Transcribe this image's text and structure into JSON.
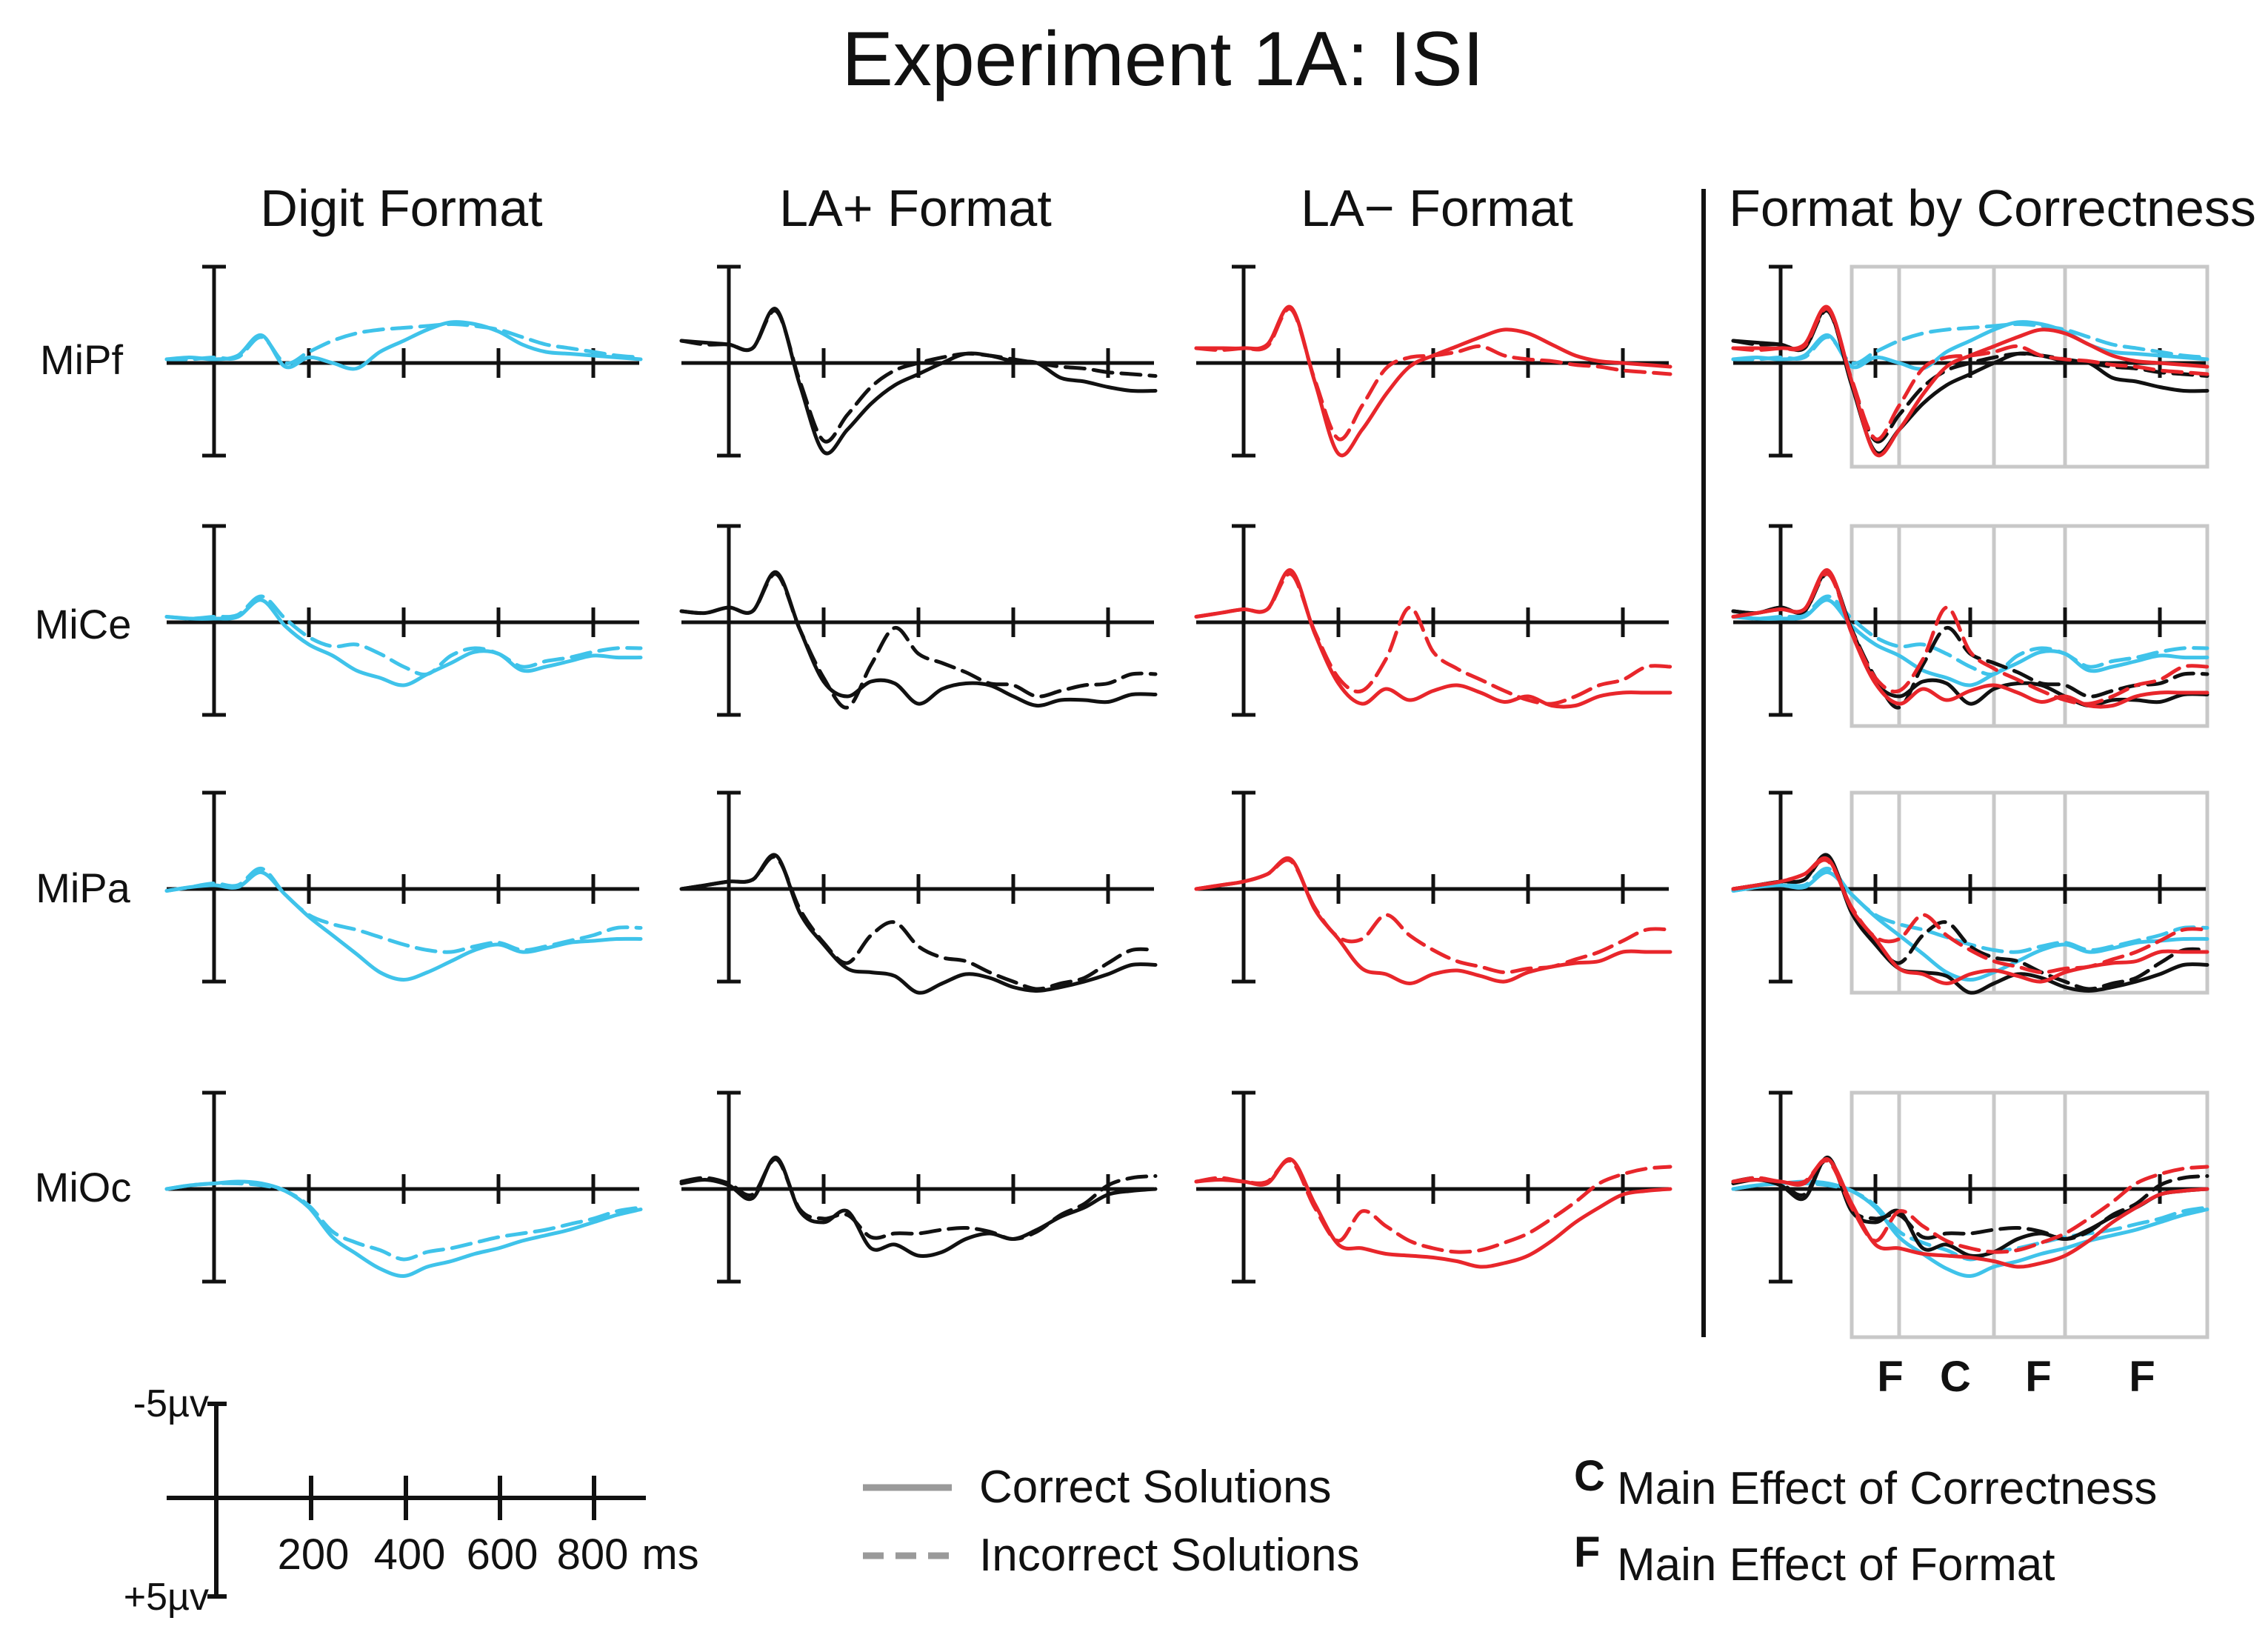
{
  "chart_data": {
    "type": "line",
    "title": "Experiment 1A: ISI",
    "columns": [
      "Digit Format",
      "LA+ Format",
      "LA− Format",
      "Format by Correctness"
    ],
    "electrodes": [
      "MiPf",
      "MiCe",
      "MiPa",
      "MiOc"
    ],
    "x_unit": "ms",
    "x_range": [
      -100,
      900
    ],
    "y_range_uv": [
      -5,
      5
    ],
    "y_axis_note": "negative plotted up",
    "colors": {
      "digit": "#3fc3ea",
      "la_plus": "#111111",
      "la_minus": "#e8262b",
      "box": "#c8c8c8"
    },
    "x_sample_ms": [
      -100,
      -50,
      0,
      50,
      100,
      150,
      200,
      250,
      300,
      350,
      400,
      450,
      500,
      550,
      600,
      650,
      700,
      750,
      800,
      850,
      900
    ],
    "series": [
      {
        "format": "Digit",
        "electrode": "MiPf",
        "solution": "Correct",
        "values": [
          -0.2,
          -0.3,
          -0.2,
          -0.4,
          -1.5,
          0.2,
          -0.3,
          0.0,
          0.3,
          -0.6,
          -1.2,
          -1.8,
          -2.2,
          -2.1,
          -1.7,
          -1.0,
          -0.6,
          -0.5,
          -0.4,
          -0.3,
          -0.2
        ]
      },
      {
        "format": "Digit",
        "electrode": "MiPf",
        "solution": "Incorrect",
        "values": [
          -0.2,
          -0.2,
          -0.3,
          -0.3,
          -1.4,
          0.0,
          -0.6,
          -1.2,
          -1.6,
          -1.8,
          -1.9,
          -2.0,
          -2.1,
          -2.0,
          -1.8,
          -1.4,
          -1.0,
          -0.8,
          -0.6,
          -0.4,
          -0.3
        ]
      },
      {
        "format": "Digit",
        "electrode": "MiCe",
        "solution": "Correct",
        "values": [
          -0.3,
          -0.2,
          -0.2,
          -0.3,
          -1.2,
          0.2,
          1.2,
          1.8,
          2.6,
          3.0,
          3.4,
          2.8,
          2.2,
          1.6,
          1.7,
          2.6,
          2.4,
          2.1,
          1.8,
          1.9,
          1.9
        ]
      },
      {
        "format": "Digit",
        "electrode": "MiCe",
        "solution": "Incorrect",
        "values": [
          -0.3,
          -0.2,
          -0.3,
          -0.4,
          -1.4,
          -0.2,
          0.8,
          1.3,
          1.2,
          1.7,
          2.4,
          2.8,
          1.8,
          1.4,
          1.7,
          2.4,
          2.1,
          1.9,
          1.6,
          1.4,
          1.4
        ]
      },
      {
        "format": "Digit",
        "electrode": "MiPa",
        "solution": "Correct",
        "values": [
          0.1,
          -0.1,
          -0.2,
          -0.1,
          -0.9,
          0.3,
          1.5,
          2.5,
          3.5,
          4.5,
          4.9,
          4.5,
          3.9,
          3.3,
          3.0,
          3.4,
          3.2,
          2.9,
          2.8,
          2.7,
          2.7
        ]
      },
      {
        "format": "Digit",
        "electrode": "MiPa",
        "solution": "Incorrect",
        "values": [
          0.1,
          -0.1,
          -0.3,
          -0.2,
          -1.1,
          0.3,
          1.4,
          1.9,
          2.2,
          2.6,
          3.0,
          3.3,
          3.4,
          3.1,
          2.9,
          3.3,
          3.1,
          2.8,
          2.5,
          2.1,
          2.1
        ]
      },
      {
        "format": "Digit",
        "electrode": "MiOc",
        "solution": "Correct",
        "values": [
          0.0,
          -0.2,
          -0.3,
          -0.4,
          -0.3,
          0.1,
          1.0,
          2.6,
          3.5,
          4.3,
          4.7,
          4.2,
          3.9,
          3.5,
          3.2,
          2.8,
          2.5,
          2.2,
          1.8,
          1.4,
          1.1
        ]
      },
      {
        "format": "Digit",
        "electrode": "MiOc",
        "solution": "Incorrect",
        "values": [
          0.0,
          -0.2,
          -0.3,
          -0.3,
          -0.2,
          0.1,
          0.9,
          2.3,
          2.9,
          3.3,
          3.8,
          3.4,
          3.2,
          2.9,
          2.6,
          2.4,
          2.2,
          1.9,
          1.6,
          1.2,
          1.0
        ]
      },
      {
        "format": "LA+",
        "electrode": "MiPf",
        "solution": "Correct",
        "values": [
          -1.2,
          -1.1,
          -1.0,
          -0.8,
          -2.9,
          1.2,
          4.8,
          3.6,
          2.2,
          1.2,
          0.6,
          0.0,
          -0.5,
          -0.4,
          -0.1,
          0.0,
          0.8,
          1.0,
          1.3,
          1.5,
          1.5
        ]
      },
      {
        "format": "LA+",
        "electrode": "MiPf",
        "solution": "Incorrect",
        "values": [
          -1.2,
          -1.0,
          -1.0,
          -0.8,
          -2.8,
          1.0,
          4.2,
          2.8,
          1.3,
          0.4,
          0.0,
          -0.3,
          -0.5,
          -0.4,
          -0.2,
          0.0,
          0.2,
          0.3,
          0.5,
          0.6,
          0.7
        ]
      },
      {
        "format": "LA+",
        "electrode": "MiCe",
        "solution": "Correct",
        "values": [
          -0.6,
          -0.5,
          -0.8,
          -0.6,
          -2.7,
          0.4,
          3.2,
          4.0,
          3.2,
          3.3,
          4.4,
          3.6,
          3.3,
          3.4,
          4.0,
          4.5,
          4.2,
          4.2,
          4.3,
          3.9,
          3.9
        ]
      },
      {
        "format": "LA+",
        "electrode": "MiCe",
        "solution": "Incorrect",
        "values": [
          -0.6,
          -0.5,
          -0.8,
          -0.6,
          -2.6,
          0.4,
          3.0,
          4.6,
          2.3,
          0.3,
          1.7,
          2.2,
          2.7,
          3.3,
          3.4,
          4.0,
          3.7,
          3.4,
          3.3,
          2.8,
          2.8
        ]
      },
      {
        "format": "LA+",
        "electrode": "MiPa",
        "solution": "Correct",
        "values": [
          0.0,
          -0.2,
          -0.4,
          -0.5,
          -1.8,
          1.3,
          3.0,
          4.3,
          4.5,
          4.7,
          5.6,
          5.1,
          4.6,
          4.8,
          5.3,
          5.5,
          5.3,
          5.0,
          4.6,
          4.1,
          4.1
        ]
      },
      {
        "format": "LA+",
        "electrode": "MiPa",
        "solution": "Incorrect",
        "values": [
          0.0,
          -0.2,
          -0.4,
          -0.5,
          -1.7,
          1.1,
          2.9,
          4.0,
          2.5,
          1.8,
          3.1,
          3.7,
          3.9,
          4.5,
          5.0,
          5.4,
          5.1,
          4.8,
          4.0,
          3.3,
          3.3
        ]
      },
      {
        "format": "LA+",
        "electrode": "MiOc",
        "solution": "Correct",
        "values": [
          -0.3,
          -0.5,
          -0.2,
          0.5,
          -1.7,
          1.2,
          1.8,
          1.2,
          3.2,
          3.0,
          3.6,
          3.4,
          2.7,
          2.4,
          2.7,
          2.2,
          1.5,
          1.0,
          0.3,
          0.1,
          0.0
        ]
      },
      {
        "format": "LA+",
        "electrode": "MiOc",
        "solution": "Incorrect",
        "values": [
          -0.4,
          -0.6,
          -0.3,
          0.3,
          -1.6,
          1.1,
          1.6,
          1.4,
          2.6,
          2.4,
          2.4,
          2.2,
          2.1,
          2.3,
          2.7,
          2.3,
          1.4,
          0.8,
          -0.2,
          -0.6,
          -0.7
        ]
      },
      {
        "format": "LA−",
        "electrode": "MiPf",
        "solution": "Correct",
        "values": [
          -0.8,
          -0.8,
          -0.8,
          -1.0,
          -3.0,
          1.0,
          4.9,
          3.6,
          1.7,
          0.2,
          -0.4,
          -0.9,
          -1.4,
          -1.8,
          -1.6,
          -1.0,
          -0.4,
          -0.1,
          0.0,
          0.1,
          0.2
        ]
      },
      {
        "format": "LA−",
        "electrode": "MiPf",
        "solution": "Incorrect",
        "values": [
          -0.8,
          -0.7,
          -0.8,
          -0.9,
          -2.9,
          0.9,
          4.1,
          2.3,
          0.3,
          -0.3,
          -0.4,
          -0.6,
          -0.9,
          -0.4,
          -0.2,
          -0.1,
          0.1,
          0.2,
          0.4,
          0.5,
          0.6
        ]
      },
      {
        "format": "LA−",
        "electrode": "MiCe",
        "solution": "Correct",
        "values": [
          -0.3,
          -0.5,
          -0.7,
          -0.7,
          -2.8,
          0.6,
          3.3,
          4.4,
          3.6,
          4.2,
          3.7,
          3.4,
          3.8,
          4.3,
          4.0,
          4.5,
          4.5,
          4.0,
          3.8,
          3.8,
          3.8
        ]
      },
      {
        "format": "LA−",
        "electrode": "MiCe",
        "solution": "Incorrect",
        "values": [
          -0.3,
          -0.5,
          -0.7,
          -0.7,
          -2.6,
          0.5,
          3.0,
          3.7,
          2.0,
          -0.8,
          1.6,
          2.5,
          3.1,
          3.7,
          4.2,
          4.4,
          4.0,
          3.4,
          3.1,
          2.4,
          2.4
        ]
      },
      {
        "format": "LA−",
        "electrode": "MiPa",
        "solution": "Correct",
        "values": [
          0.0,
          -0.2,
          -0.4,
          -0.8,
          -1.6,
          1.1,
          2.7,
          4.3,
          4.6,
          5.1,
          4.6,
          4.4,
          4.7,
          5.0,
          4.5,
          4.2,
          4.0,
          3.9,
          3.4,
          3.4,
          3.4
        ]
      },
      {
        "format": "LA−",
        "electrode": "MiPa",
        "solution": "Incorrect",
        "values": [
          0.0,
          -0.2,
          -0.4,
          -0.8,
          -1.5,
          1.0,
          2.6,
          2.7,
          1.4,
          2.5,
          3.3,
          3.9,
          4.2,
          4.5,
          4.3,
          4.2,
          3.8,
          3.4,
          2.8,
          2.2,
          2.2
        ]
      },
      {
        "format": "LA−",
        "electrode": "MiOc",
        "solution": "Correct",
        "values": [
          -0.4,
          -0.5,
          -0.4,
          -0.3,
          -1.6,
          0.8,
          3.0,
          3.2,
          3.5,
          3.6,
          3.7,
          3.9,
          4.2,
          4.0,
          3.6,
          2.8,
          1.8,
          1.0,
          0.3,
          0.1,
          0.0
        ]
      },
      {
        "format": "LA−",
        "electrode": "MiOc",
        "solution": "Incorrect",
        "values": [
          -0.4,
          -0.6,
          -0.4,
          -0.4,
          -1.5,
          1.0,
          2.8,
          1.2,
          2.0,
          2.8,
          3.2,
          3.4,
          3.3,
          2.9,
          2.4,
          1.6,
          0.7,
          -0.3,
          -0.8,
          -1.1,
          -1.2
        ]
      }
    ],
    "effect_markers": [
      "F",
      "C",
      "F",
      "F"
    ],
    "legend": {
      "lines": [
        "Correct Solutions",
        "Incorrect Solutions"
      ],
      "effects": [
        {
          "letter": "C",
          "label": "Main Effect of Correctness"
        },
        {
          "letter": "F",
          "label": "Main Effect of Format"
        }
      ]
    },
    "scale_bar": {
      "y_top_label": "-5µv",
      "y_bottom_label": "+5µv",
      "tick_labels": [
        "200",
        "400",
        "600",
        "800"
      ],
      "unit_label": "ms"
    }
  }
}
